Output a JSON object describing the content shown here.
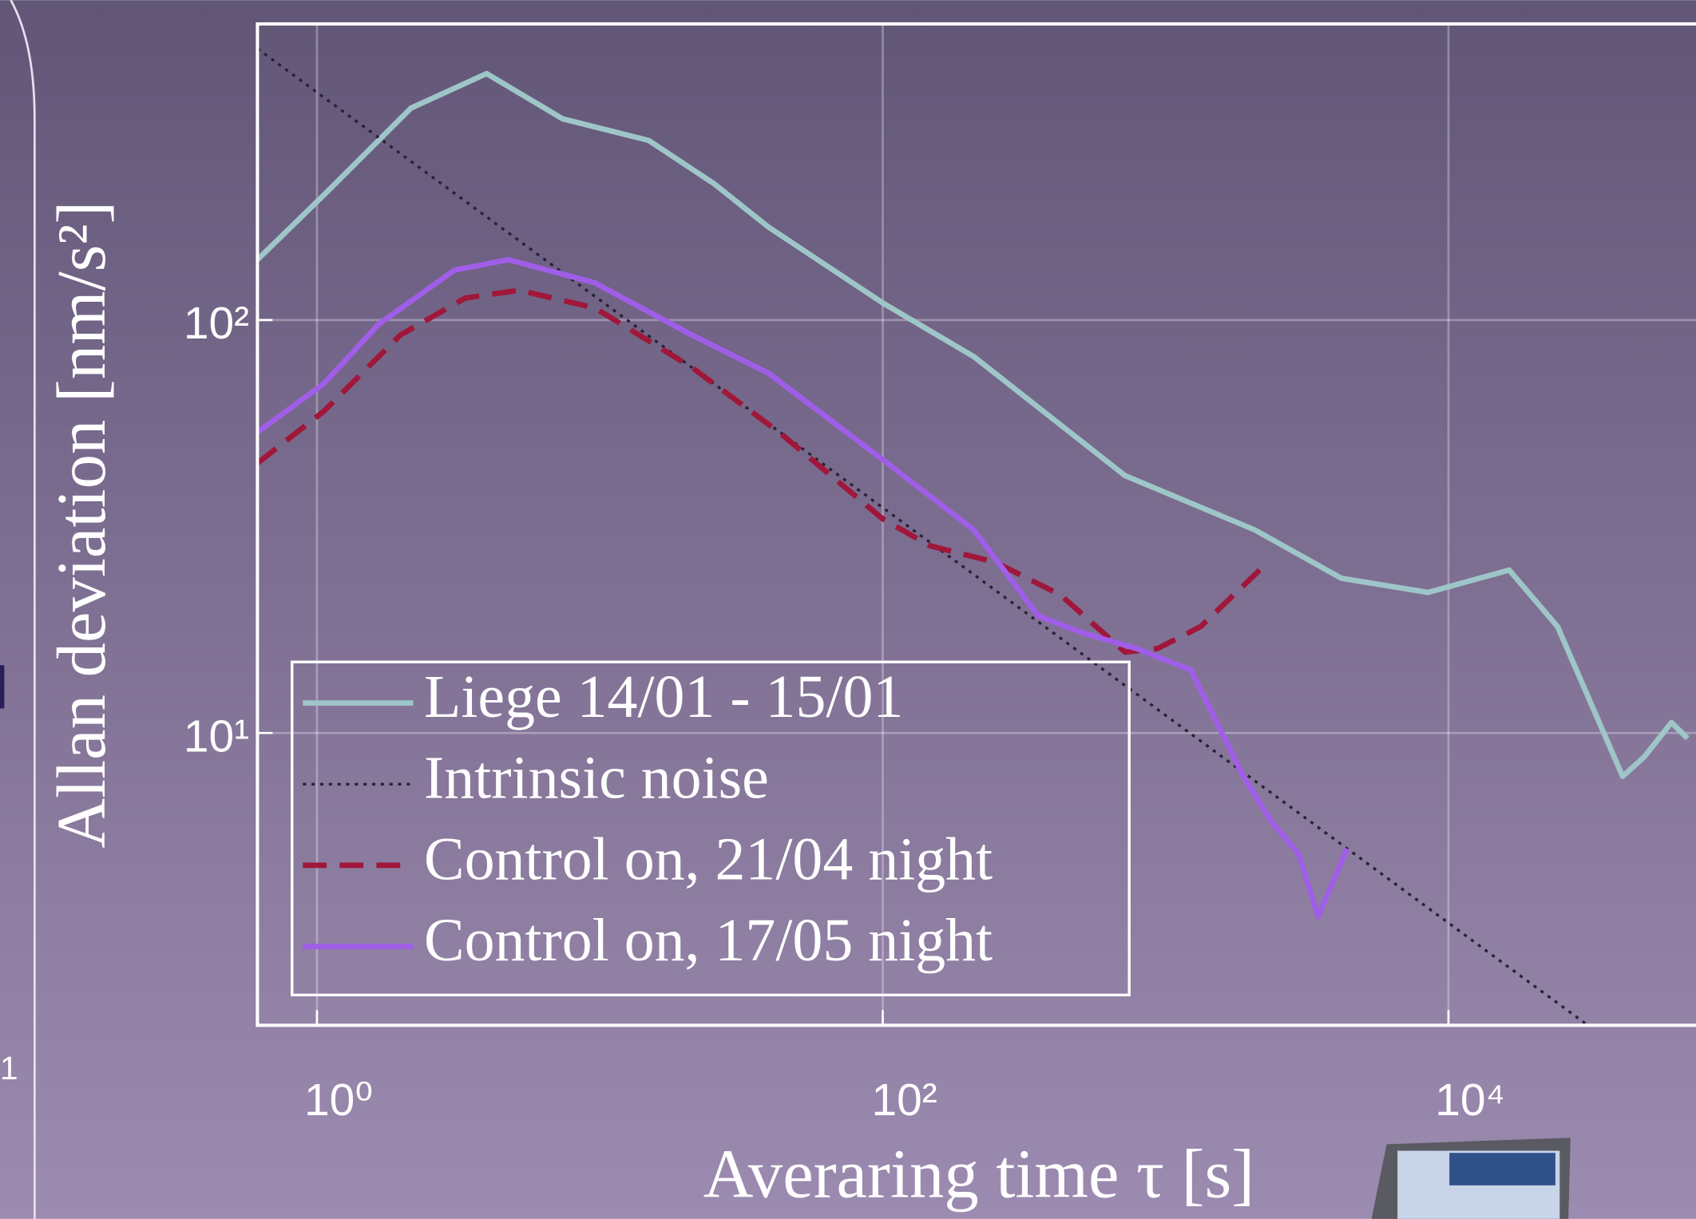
{
  "chart_data": {
    "type": "line",
    "xlabel": "Averaring time τ [s]",
    "ylabel": "Allan deviation [nm/s²]",
    "xscale": "log",
    "yscale": "log",
    "grid": true,
    "legend": "lower left",
    "xlim": [
      0.616,
      75000
    ],
    "ylim": [
      1.96,
      521
    ],
    "xticks": [
      {
        "value": 1,
        "label": "10⁰"
      },
      {
        "value": 100,
        "label": "10²"
      },
      {
        "value": 10000,
        "label": "10⁴"
      }
    ],
    "yticks": [
      {
        "value": 10,
        "label": "10¹"
      },
      {
        "value": 100,
        "label": "10²"
      }
    ],
    "series": [
      {
        "name": "Liege 14/01 - 15/01",
        "color": "#9ec6c8",
        "style": "solid",
        "x": [
          0.616,
          1.06,
          2.15,
          3.98,
          7.38,
          14.9,
          25.3,
          39.4,
          100,
          210,
          719,
          2070,
          4180,
          8460,
          16400,
          24300,
          41300,
          49200,
          61400,
          70000
        ],
        "values": [
          140,
          201,
          326,
          395,
          307,
          272,
          214,
          168,
          110,
          81.5,
          42,
          31,
          23.7,
          21.9,
          24.8,
          18.1,
          7.85,
          8.75,
          10.6,
          9.7
        ]
      },
      {
        "name": "Intrinsic noise",
        "color": "#2a2232",
        "style": "dotted",
        "x": [
          0.616,
          31100
        ],
        "values": [
          454,
          1.96
        ]
      },
      {
        "name": "Control on, 21/04 night",
        "color": "#a0173a",
        "style": "dashed",
        "x": [
          0.616,
          1.06,
          1.97,
          3.34,
          5.19,
          9.6,
          21.2,
          43,
          100,
          147,
          250,
          425,
          719,
          935,
          1330,
          2150
        ],
        "values": [
          45,
          60.2,
          91.9,
          113,
          118,
          107,
          76.7,
          53.5,
          33,
          28.4,
          25.9,
          21.6,
          15.7,
          16,
          18.1,
          24.8
        ]
      },
      {
        "name": "Control on, 17/05 night",
        "color": "#a05ee8",
        "style": "solid",
        "x": [
          0.616,
          1.06,
          1.65,
          3.06,
          4.75,
          9.6,
          21.2,
          39.4,
          100,
          210,
          355,
          506,
          790,
          1230,
          1900,
          2370,
          2950,
          3460,
          4380
        ],
        "values": [
          53.5,
          70.2,
          97.6,
          132,
          140,
          123,
          91.9,
          74.4,
          45.9,
          31,
          19.2,
          17.5,
          16,
          14.2,
          7.76,
          6.1,
          5.1,
          3.59,
          5.25
        ]
      }
    ]
  },
  "cropped_label": "1"
}
